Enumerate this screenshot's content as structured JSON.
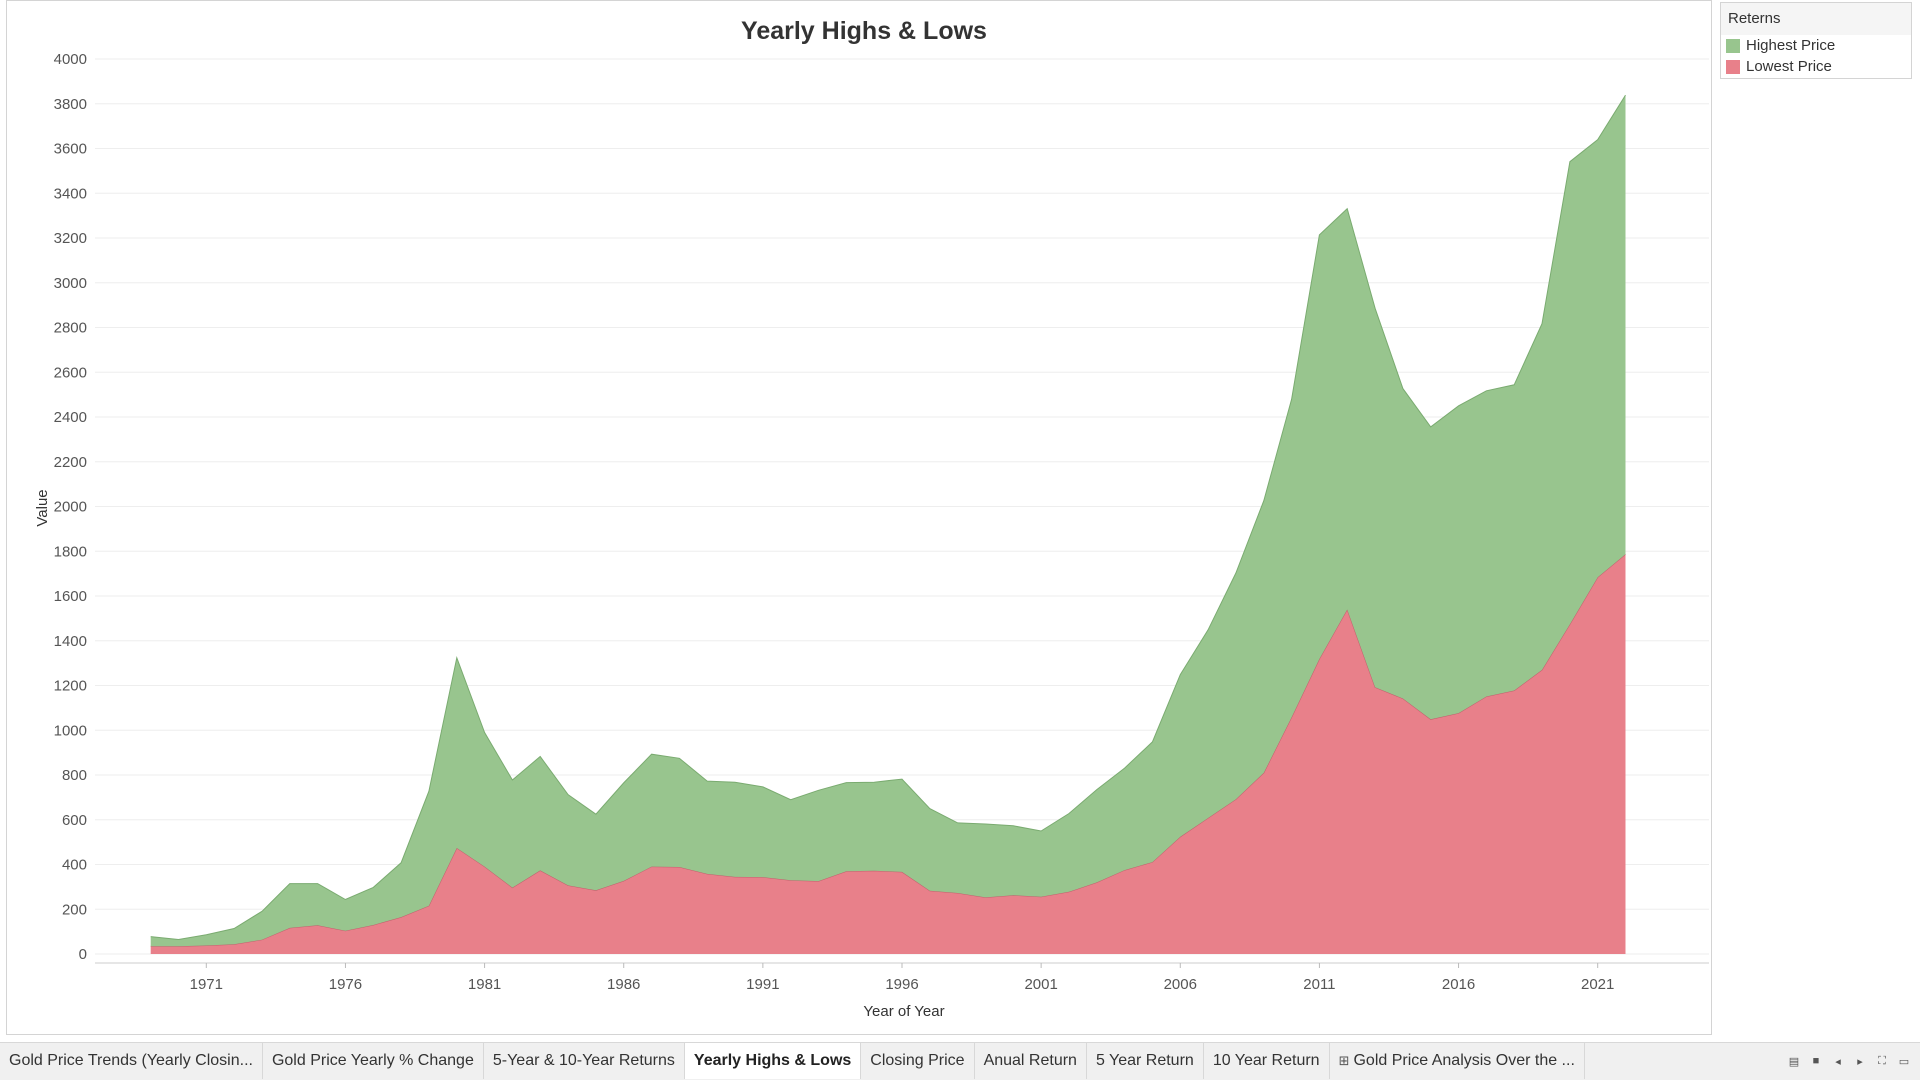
{
  "chart_data": {
    "type": "area",
    "title": "Yearly Highs & Lows",
    "xlabel": "Year of Year",
    "ylabel": "Value",
    "xlim": [
      1967,
      2025
    ],
    "ylim": [
      -40,
      4000
    ],
    "yticks": [
      0,
      200,
      400,
      600,
      800,
      1000,
      1200,
      1400,
      1600,
      1800,
      2000,
      2200,
      2400,
      2600,
      2800,
      3000,
      3200,
      3400,
      3600,
      3800,
      4000
    ],
    "xticks": [
      1971,
      1976,
      1981,
      1986,
      1991,
      1996,
      2001,
      2006,
      2011,
      2016,
      2021
    ],
    "grid": true,
    "stacked": true,
    "legend_title": "Reterns",
    "legend_position": "top-right",
    "x": [
      1969,
      1970,
      1971,
      1972,
      1973,
      1974,
      1975,
      1976,
      1977,
      1978,
      1979,
      1980,
      1981,
      1982,
      1983,
      1984,
      1985,
      1986,
      1987,
      1988,
      1989,
      1990,
      1991,
      1992,
      1993,
      1994,
      1995,
      1996,
      1997,
      1998,
      1999,
      2000,
      2001,
      2002,
      2003,
      2004,
      2005,
      2006,
      2007,
      2008,
      2009,
      2010,
      2011,
      2012,
      2013,
      2014,
      2015,
      2016,
      2017,
      2018,
      2019,
      2020,
      2021,
      2022
    ],
    "series": [
      {
        "name": "Lowest Price",
        "color": "#e8808a",
        "values": [
          35,
          35,
          38,
          44,
          64,
          117,
          129,
          104,
          130,
          165,
          216,
          474,
          391,
          297,
          374,
          307,
          285,
          327,
          391,
          389,
          358,
          345,
          344,
          330,
          326,
          370,
          372,
          367,
          283,
          273,
          253,
          263,
          256,
          278,
          320,
          375,
          411,
          524,
          608,
          692,
          810,
          1058,
          1319,
          1540,
          1192,
          1142,
          1049,
          1077,
          1151,
          1178,
          1270,
          1474,
          1684,
          1787
        ]
      },
      {
        "name": "Highest Price",
        "color": "#98c58e",
        "values": [
          43,
          30,
          48,
          70,
          127,
          198,
          186,
          140,
          168,
          243,
          512,
          850,
          599,
          481,
          509,
          405,
          340,
          438,
          502,
          486,
          415,
          423,
          403,
          360,
          406,
          396,
          396,
          415,
          367,
          313,
          328,
          310,
          294,
          350,
          415,
          456,
          537,
          725,
          841,
          1011,
          1216,
          1421,
          1895,
          1791,
          1694,
          1385,
          1307,
          1373,
          1366,
          1366,
          1547,
          2067,
          1956,
          2051
        ]
      }
    ]
  }
}
